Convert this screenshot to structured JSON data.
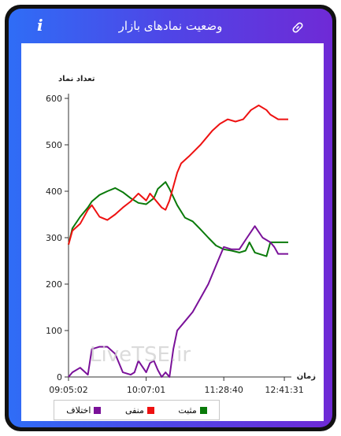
{
  "header": {
    "title": "وضعیت نمادهای بازار",
    "info_icon": "info-icon",
    "link_icon": "link-icon"
  },
  "watermark": "LiveTSE.ir",
  "colors": {
    "positive": "#0a7a0a",
    "negative": "#ee1111",
    "difference": "#7a1199"
  },
  "chart_data": {
    "type": "line",
    "ylabel": "تعداد نماد",
    "xlabel": "زمان",
    "ylim": [
      0,
      600
    ],
    "yticks": [
      0,
      100,
      200,
      300,
      400,
      500,
      600
    ],
    "xlim": [
      0,
      283
    ],
    "xticks": [
      {
        "x": 0,
        "label": "09:05:02"
      },
      {
        "x": 100,
        "label": "10:07:01"
      },
      {
        "x": 200,
        "label": "11:28:40"
      },
      {
        "x": 278,
        "label": "12:41:31"
      }
    ],
    "grid": false,
    "legend": "bottom",
    "series": [
      {
        "name": "مثبت",
        "color": "#0a7a0a",
        "x": [
          0,
          5,
          15,
          25,
          30,
          40,
          50,
          60,
          70,
          80,
          90,
          100,
          110,
          115,
          125,
          130,
          140,
          150,
          160,
          170,
          180,
          190,
          200,
          210,
          220,
          228,
          233,
          240,
          255,
          260,
          270,
          283
        ],
        "y": [
          285,
          320,
          345,
          365,
          378,
          392,
          400,
          407,
          398,
          385,
          375,
          372,
          385,
          405,
          420,
          405,
          370,
          343,
          335,
          318,
          300,
          283,
          275,
          272,
          268,
          272,
          290,
          268,
          260,
          290,
          290,
          290
        ]
      },
      {
        "name": "منفی",
        "color": "#ee1111",
        "x": [
          0,
          5,
          15,
          25,
          30,
          40,
          50,
          60,
          70,
          80,
          90,
          100,
          105,
          115,
          120,
          125,
          130,
          140,
          145,
          155,
          170,
          185,
          195,
          205,
          215,
          225,
          235,
          245,
          255,
          260,
          265,
          270,
          283
        ],
        "y": [
          285,
          315,
          330,
          360,
          370,
          345,
          338,
          350,
          365,
          378,
          395,
          380,
          395,
          375,
          365,
          360,
          380,
          440,
          460,
          475,
          500,
          530,
          545,
          555,
          550,
          555,
          575,
          585,
          575,
          565,
          560,
          555,
          555
        ]
      },
      {
        "name": "اختلاف",
        "color": "#7a1199",
        "x": [
          0,
          5,
          15,
          25,
          30,
          40,
          50,
          60,
          70,
          80,
          85,
          90,
          100,
          105,
          110,
          115,
          120,
          125,
          130,
          135,
          140,
          150,
          160,
          170,
          180,
          190,
          200,
          210,
          220,
          230,
          240,
          250,
          260,
          265,
          270,
          283
        ],
        "y": [
          0,
          10,
          20,
          5,
          60,
          65,
          65,
          50,
          10,
          5,
          10,
          35,
          10,
          30,
          35,
          15,
          0,
          10,
          0,
          60,
          100,
          120,
          140,
          170,
          200,
          240,
          280,
          275,
          275,
          300,
          325,
          300,
          290,
          280,
          265,
          265
        ]
      }
    ]
  }
}
